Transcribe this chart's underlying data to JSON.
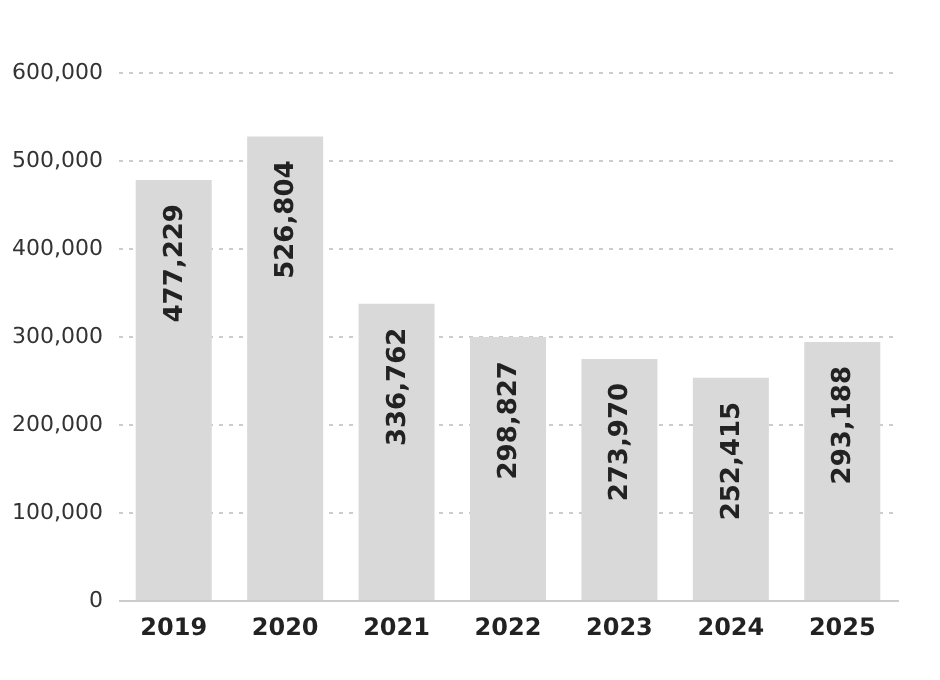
{
  "chart_data": {
    "type": "bar",
    "categories": [
      "2019",
      "2020",
      "2021",
      "2022",
      "2023",
      "2024",
      "2025"
    ],
    "values": [
      477229,
      526804,
      336762,
      298827,
      273970,
      252415,
      293188
    ],
    "value_labels": [
      "477,229",
      "526,804",
      "336,762",
      "298,827",
      "273,970",
      "252,415",
      "293,188"
    ],
    "color": "#d9d9d9",
    "ylim": [
      0,
      600000
    ],
    "yticks": [
      {
        "value": 0,
        "label": "0"
      },
      {
        "value": 100000,
        "label": "100,000"
      },
      {
        "value": 200000,
        "label": "200,000"
      },
      {
        "value": 300000,
        "label": "300,000"
      },
      {
        "value": 400000,
        "label": "400,000"
      },
      {
        "value": 500000,
        "label": "500,000"
      },
      {
        "value": 600000,
        "label": "600,000"
      }
    ],
    "grid": "y"
  }
}
